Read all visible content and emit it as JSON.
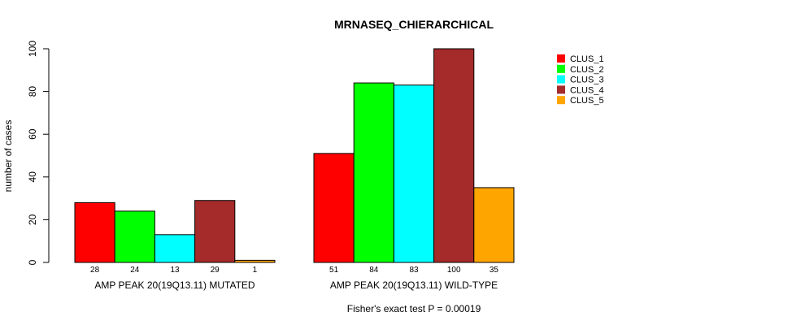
{
  "chart_data": {
    "type": "bar",
    "title": "MRNASEQ_CHIERARCHICAL",
    "ylabel": "number of cases",
    "xlabel": "",
    "ylim": [
      0,
      100
    ],
    "yticks": [
      0,
      20,
      40,
      60,
      80,
      100
    ],
    "groups": [
      "AMP PEAK 20(19Q13.11) MUTATED",
      "AMP PEAK 20(19Q13.11) WILD-TYPE"
    ],
    "series": [
      {
        "name": "CLUS_1",
        "color": "#ff0000",
        "values": [
          28,
          51
        ]
      },
      {
        "name": "CLUS_2",
        "color": "#00ff00",
        "values": [
          24,
          84
        ]
      },
      {
        "name": "CLUS_3",
        "color": "#00ffff",
        "values": [
          13,
          83
        ]
      },
      {
        "name": "CLUS_4",
        "color": "#a52a2a",
        "values": [
          29,
          100
        ]
      },
      {
        "name": "CLUS_5",
        "color": "#ffa500",
        "values": [
          1,
          35
        ]
      }
    ],
    "legend_position": "top-right",
    "footer": "Fisher's exact test P = 0.00019"
  }
}
